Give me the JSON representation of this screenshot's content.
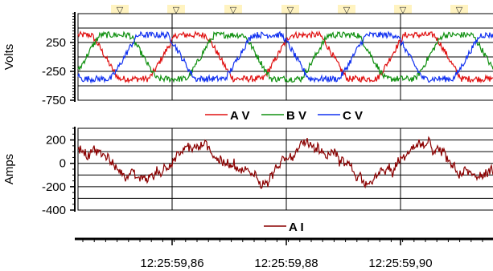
{
  "chart_data": [
    {
      "type": "line",
      "ylabel": "Volts",
      "ylim": [
        -750,
        750
      ],
      "yticks": [
        {
          "label": "250",
          "value": 250
        },
        {
          "label": "-250",
          "value": -250
        },
        {
          "label": "-750",
          "value": -750
        }
      ],
      "grid": true,
      "markers": [
        "▽",
        "▽",
        "▽",
        "▽",
        "▽",
        "▽",
        "▽"
      ],
      "legend": {
        "placement": "bottom",
        "entries": [
          "A V",
          "B V",
          "C V"
        ]
      },
      "series": [
        {
          "name": "A V",
          "color": "#e01010",
          "amplitude": 480,
          "phase_deg": 0
        },
        {
          "name": "B V",
          "color": "#109010",
          "amplitude": 480,
          "phase_deg": 120
        },
        {
          "name": "C V",
          "color": "#1030f0",
          "amplitude": 480,
          "phase_deg": 240
        }
      ]
    },
    {
      "type": "line",
      "ylabel": "Amps",
      "ylim": [
        -400,
        300
      ],
      "yticks": [
        {
          "label": "200",
          "value": 200
        },
        {
          "label": "0",
          "value": 0
        },
        {
          "label": "-200",
          "value": -200
        },
        {
          "label": "-400",
          "value": -400
        }
      ],
      "grid": true,
      "legend": {
        "placement": "bottom",
        "entries": [
          "A I"
        ]
      },
      "series": [
        {
          "name": "A I",
          "color": "#8b0000"
        }
      ]
    }
  ],
  "x_axis": {
    "ticks": [
      "12:25:59,86",
      "12:25:59,88",
      "12:25:59,90"
    ]
  }
}
